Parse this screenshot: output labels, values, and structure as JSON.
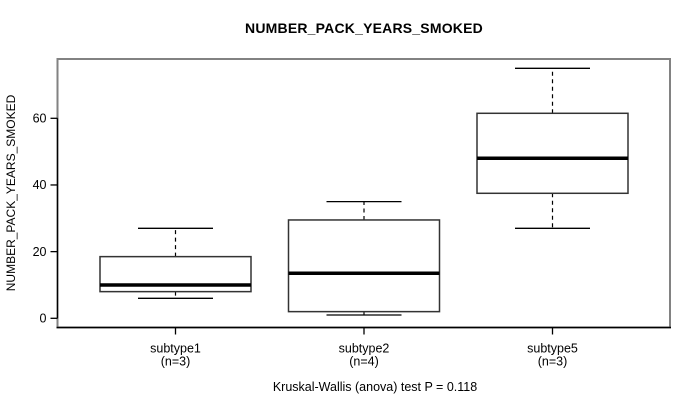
{
  "figure": {
    "title": "NUMBER_PACK_YEARS_SMOKED",
    "y_axis_label": "NUMBER_PACK_YEARS_SMOKED",
    "footer": "Kruskal-Wallis (anova) test P = 0.118"
  },
  "chart_data": {
    "type": "boxplot",
    "title": "NUMBER_PACK_YEARS_SMOKED",
    "xlabel": "",
    "ylabel": "NUMBER_PACK_YEARS_SMOKED",
    "annotation": "Kruskal-Wallis (anova) test P = 0.118",
    "test_name": "Kruskal-Wallis (anova) test",
    "p_value": 0.118,
    "categories": [
      "subtype1",
      "subtype2",
      "subtype5"
    ],
    "category_sublabels": [
      "(n=3)",
      "(n=4)",
      "(n=3)"
    ],
    "group_sizes": [
      3,
      4,
      3
    ],
    "y_ticks": [
      0,
      20,
      40,
      60
    ],
    "ylim": [
      -2.76,
      77.79
    ],
    "grid": false,
    "legend": "none",
    "series": [
      {
        "name": "subtype1",
        "n": 3,
        "whisker_low": 6,
        "q1": 8,
        "median": 10,
        "q3": 18.5,
        "whisker_high": 27,
        "outliers": []
      },
      {
        "name": "subtype2",
        "n": 4,
        "whisker_low": 1,
        "q1": 2,
        "median": 13.5,
        "q3": 29.5,
        "whisker_high": 35,
        "outliers": []
      },
      {
        "name": "subtype5",
        "n": 3,
        "whisker_low": 27,
        "q1": 37.5,
        "median": 48,
        "q3": 61.5,
        "whisker_high": 75,
        "outliers": []
      }
    ],
    "colors": {
      "background": "#ffffff",
      "box_fill": "#ffffff",
      "box_border": "#333333",
      "line": "#000000",
      "frame": "#828282",
      "text": "#000000"
    }
  }
}
